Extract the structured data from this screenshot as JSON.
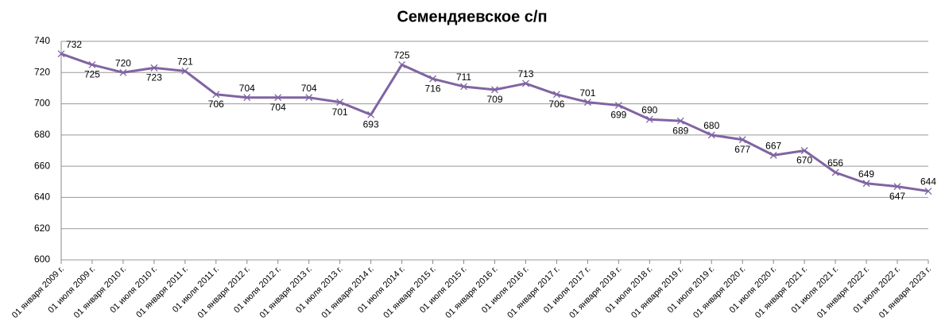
{
  "chart_data": {
    "type": "line",
    "title": "Семендяевское с/п",
    "categories": [
      "01 января 2009 г.",
      "01 июля 2009 г.",
      "01 января 2010 г.",
      "01 июля 2010 г.",
      "01 января 2011 г.",
      "01 июля 2011 г.",
      "01 января 2012 г.",
      "01 июля 2012 г.",
      "01 января 2013 г.",
      "01 июля 2013 г.",
      "01 января 2014 г.",
      "01 июля 2014 г.",
      "01 января 2015 г.",
      "01 июля 2015 г.",
      "01 января 2016 г.",
      "01 июля 2016 г.",
      "01 января 2017 г.",
      "01 июля 2017 г.",
      "01 января 2018 г.",
      "01 июля 2018 г.",
      "01 января 2019 г.",
      "01 июля 2019 г.",
      "01 января 2020 г.",
      "01 июля 2020 г.",
      "01 января 2021 г.",
      "01 июля 2021 г.",
      "01 января 2022 г.",
      "01 июля 2022 г.",
      "01 января 2023 г."
    ],
    "values": [
      732,
      725,
      720,
      723,
      721,
      706,
      704,
      704,
      704,
      701,
      693,
      725,
      716,
      711,
      709,
      713,
      706,
      701,
      699,
      690,
      689,
      680,
      677,
      667,
      670,
      656,
      649,
      647,
      644
    ],
    "color": "#8064a2",
    "ylim": [
      600,
      740
    ],
    "yticks": [
      600,
      620,
      640,
      660,
      680,
      700,
      720,
      740
    ],
    "grid": true
  }
}
